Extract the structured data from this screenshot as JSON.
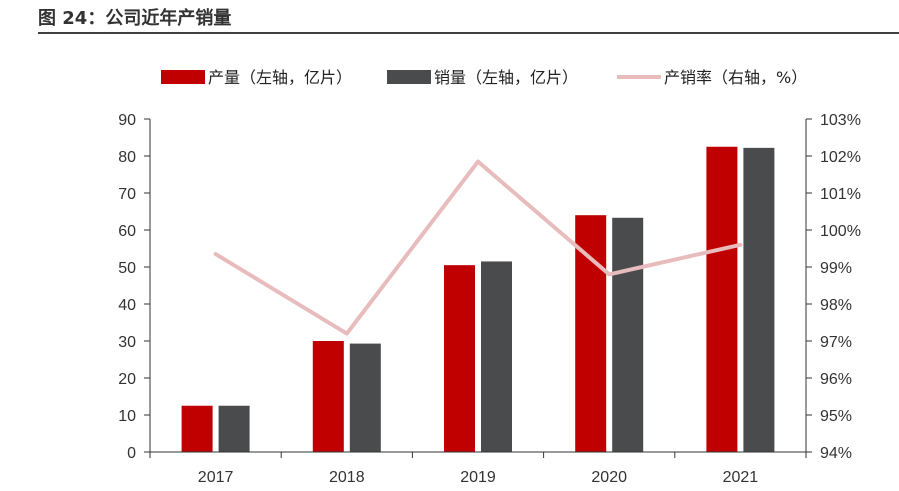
{
  "figure": {
    "title": "图 24：公司近年产销量"
  },
  "colors": {
    "production": "#c00000",
    "sales": "#4a4b4d",
    "ratio": "#e8bcbc",
    "axis": "#333333",
    "rule": "#404040"
  },
  "chart_data": {
    "type": "bar",
    "categories": [
      "2017",
      "2018",
      "2019",
      "2020",
      "2021"
    ],
    "series": [
      {
        "name": "产量（左轴，亿片）",
        "kind": "bar",
        "axis": "left",
        "color": "#c00000",
        "values": [
          12.5,
          30,
          50.5,
          64,
          82.5
        ]
      },
      {
        "name": "销量（左轴，亿片）",
        "kind": "bar",
        "axis": "left",
        "color": "#4a4b4d",
        "values": [
          12.5,
          29.3,
          51.5,
          63.3,
          82.2
        ]
      },
      {
        "name": "产销率（右轴，%）",
        "kind": "line",
        "axis": "right",
        "color": "#e8bcbc",
        "values": [
          99.35,
          97.2,
          101.85,
          98.8,
          99.6
        ]
      }
    ],
    "y_left": {
      "min": 0,
      "max": 90,
      "step": 10,
      "ticks": [
        "0",
        "10",
        "20",
        "30",
        "40",
        "50",
        "60",
        "70",
        "80",
        "90"
      ]
    },
    "y_right": {
      "min": 94,
      "max": 103,
      "step": 1,
      "ticks": [
        "94%",
        "95%",
        "96%",
        "97%",
        "98%",
        "99%",
        "100%",
        "101%",
        "102%",
        "103%"
      ]
    },
    "legend_position": "top",
    "grid": false
  }
}
